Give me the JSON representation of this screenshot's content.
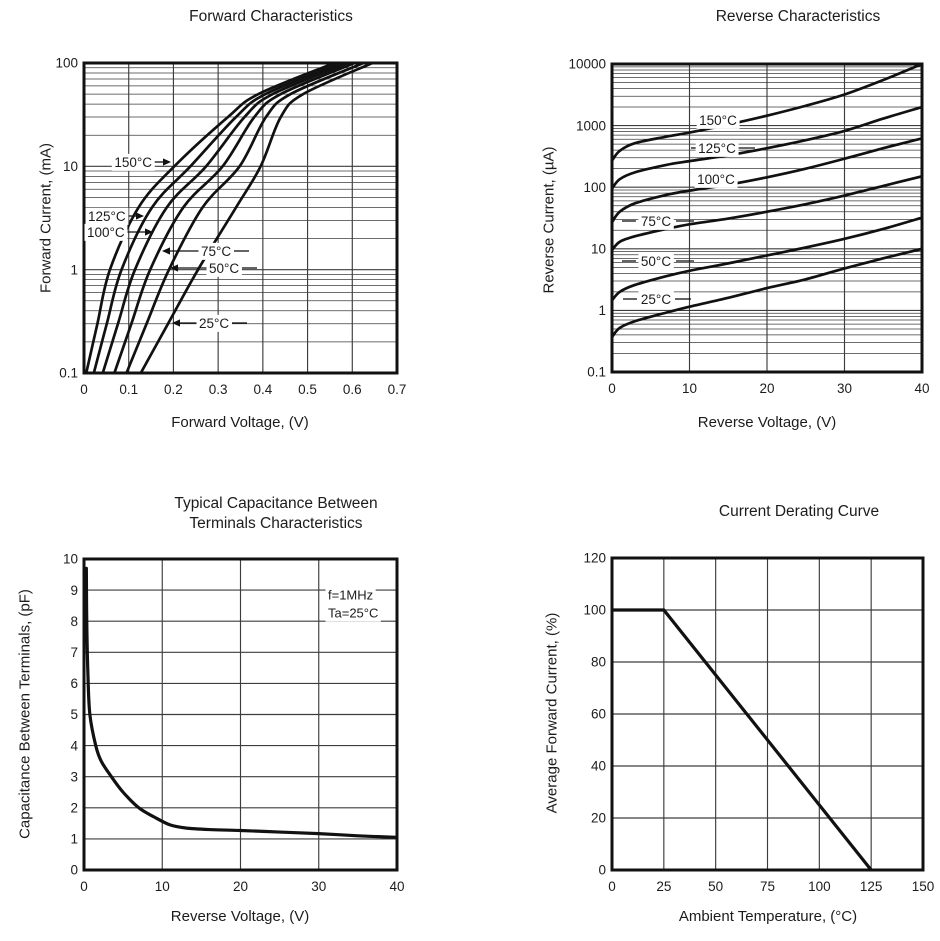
{
  "page": {
    "background": "#ffffff",
    "text_color": "#1c1c1c",
    "grid_color": "#3d3d3d",
    "frame_color": "#111111",
    "curve_color": "#111111"
  },
  "chart_data": [
    {
      "id": "forward-characteristics",
      "type": "line",
      "title": "Forward Characteristics",
      "xlabel": "Forward Voltage, (V)",
      "ylabel": "Forward Current, (mA)",
      "x_scale": "linear",
      "y_scale": "log",
      "xlim": [
        0,
        0.7
      ],
      "ylim": [
        0.1,
        100
      ],
      "x_ticks": [
        0,
        0.1,
        0.2,
        0.3,
        0.4,
        0.5,
        0.6,
        0.7
      ],
      "y_ticks": [
        100,
        10,
        1,
        0.1
      ],
      "grid": "on",
      "series": [
        {
          "name": "150°C",
          "points": [
            [
              0.005,
              0.1
            ],
            [
              0.03,
              0.3
            ],
            [
              0.058,
              1
            ],
            [
              0.122,
              4
            ],
            [
              0.202,
              10
            ],
            [
              0.322,
              30
            ],
            [
              0.39,
              50
            ],
            [
              0.56,
              100
            ]
          ]
        },
        {
          "name": "125°C",
          "points": [
            [
              0.022,
              0.1
            ],
            [
              0.051,
              0.3
            ],
            [
              0.084,
              1
            ],
            [
              0.152,
              4
            ],
            [
              0.238,
              10
            ],
            [
              0.34,
              30
            ],
            [
              0.406,
              50
            ],
            [
              0.575,
              100
            ]
          ]
        },
        {
          "name": "100°C",
          "points": [
            [
              0.042,
              0.1
            ],
            [
              0.076,
              0.3
            ],
            [
              0.114,
              1
            ],
            [
              0.185,
              4
            ],
            [
              0.273,
              10
            ],
            [
              0.359,
              30
            ],
            [
              0.422,
              50
            ],
            [
              0.59,
              100
            ]
          ]
        },
        {
          "name": "75°C",
          "points": [
            [
              0.068,
              0.1
            ],
            [
              0.106,
              0.3
            ],
            [
              0.148,
              1
            ],
            [
              0.222,
              4
            ],
            [
              0.31,
              10
            ],
            [
              0.381,
              30
            ],
            [
              0.44,
              50
            ],
            [
              0.605,
              100
            ]
          ]
        },
        {
          "name": "50°C",
          "points": [
            [
              0.095,
              0.1
            ],
            [
              0.14,
              0.3
            ],
            [
              0.19,
              1
            ],
            [
              0.265,
              4
            ],
            [
              0.348,
              10
            ],
            [
              0.407,
              30
            ],
            [
              0.462,
              50
            ],
            [
              0.625,
              100
            ]
          ]
        },
        {
          "name": "25°C",
          "points": [
            [
              0.127,
              0.1
            ],
            [
              0.188,
              0.3
            ],
            [
              0.255,
              1
            ],
            [
              0.34,
              4
            ],
            [
              0.395,
              10
            ],
            [
              0.44,
              30
            ],
            [
              0.49,
              50
            ],
            [
              0.645,
              100
            ]
          ]
        }
      ]
    },
    {
      "id": "reverse-characteristics",
      "type": "line",
      "title": "Reverse Characteristics",
      "xlabel": "Reverse Voltage, (V)",
      "ylabel": "Reverse Current, (µA)",
      "x_scale": "linear",
      "y_scale": "log",
      "xlim": [
        0,
        40
      ],
      "ylim": [
        0.1,
        10000
      ],
      "x_ticks": [
        0,
        10,
        20,
        30,
        40
      ],
      "y_ticks": [
        10000,
        1000,
        100,
        10,
        1,
        0.1
      ],
      "grid": "on",
      "series": [
        {
          "name": "150°C",
          "points": [
            [
              0,
              270
            ],
            [
              1,
              390
            ],
            [
              3,
              520
            ],
            [
              7,
              660
            ],
            [
              10,
              770
            ],
            [
              15,
              1040
            ],
            [
              20,
              1450
            ],
            [
              25,
              2100
            ],
            [
              30,
              3200
            ],
            [
              35,
              5500
            ],
            [
              40,
              10000
            ]
          ]
        },
        {
          "name": "125°C",
          "points": [
            [
              0,
              95
            ],
            [
              1,
              135
            ],
            [
              3,
              175
            ],
            [
              7,
              230
            ],
            [
              10,
              265
            ],
            [
              15,
              330
            ],
            [
              20,
              430
            ],
            [
              25,
              580
            ],
            [
              30,
              820
            ],
            [
              35,
              1300
            ],
            [
              40,
              2000
            ]
          ]
        },
        {
          "name": "100°C",
          "points": [
            [
              0,
              27
            ],
            [
              1,
              40
            ],
            [
              3,
              55
            ],
            [
              7,
              75
            ],
            [
              10,
              88
            ],
            [
              15,
              110
            ],
            [
              20,
              145
            ],
            [
              25,
              200
            ],
            [
              30,
              290
            ],
            [
              35,
              430
            ],
            [
              40,
              620
            ]
          ]
        },
        {
          "name": "75°C",
          "points": [
            [
              0,
              9.5
            ],
            [
              1,
              13
            ],
            [
              3,
              16
            ],
            [
              7,
              21
            ],
            [
              10,
              25
            ],
            [
              15,
              31
            ],
            [
              20,
              40
            ],
            [
              25,
              53
            ],
            [
              30,
              73
            ],
            [
              35,
              105
            ],
            [
              40,
              150
            ]
          ]
        },
        {
          "name": "50°C",
          "points": [
            [
              0,
              1.45
            ],
            [
              1,
              2.0
            ],
            [
              3,
              2.6
            ],
            [
              7,
              3.6
            ],
            [
              10,
              4.4
            ],
            [
              15,
              5.8
            ],
            [
              20,
              7.8
            ],
            [
              25,
              10.5
            ],
            [
              30,
              14.5
            ],
            [
              35,
              21
            ],
            [
              40,
              32
            ]
          ]
        },
        {
          "name": "25°C",
          "points": [
            [
              0,
              0.37
            ],
            [
              1,
              0.52
            ],
            [
              3,
              0.67
            ],
            [
              7,
              0.92
            ],
            [
              10,
              1.15
            ],
            [
              15,
              1.6
            ],
            [
              20,
              2.3
            ],
            [
              25,
              3.2
            ],
            [
              30,
              4.8
            ],
            [
              35,
              7
            ],
            [
              40,
              10
            ]
          ]
        }
      ]
    },
    {
      "id": "capacitance-between-terminals",
      "type": "line",
      "title": "Typical Capacitance Between Terminals Characteristics",
      "xlabel": "Reverse Voltage, (V)",
      "ylabel": "Capacitance Between Terminals, (pF)",
      "x_scale": "linear",
      "y_scale": "linear",
      "xlim": [
        0,
        40
      ],
      "ylim": [
        0,
        10
      ],
      "x_ticks": [
        0,
        10,
        20,
        30,
        40
      ],
      "y_ticks": [
        0,
        1,
        2,
        3,
        4,
        5,
        6,
        7,
        8,
        9,
        10
      ],
      "grid": "on",
      "annotations": [
        "f=1MHz",
        "Ta=25°C"
      ],
      "series": [
        {
          "name": "capacitance",
          "points": [
            [
              0.3,
              9.7
            ],
            [
              0.35,
              8
            ],
            [
              0.5,
              6.3
            ],
            [
              0.75,
              5
            ],
            [
              1.5,
              4
            ],
            [
              2.2,
              3.5
            ],
            [
              3.5,
              3
            ],
            [
              5,
              2.5
            ],
            [
              7,
              2
            ],
            [
              9,
              1.7
            ],
            [
              11,
              1.45
            ],
            [
              13,
              1.35
            ],
            [
              16,
              1.3
            ],
            [
              20,
              1.27
            ],
            [
              25,
              1.22
            ],
            [
              30,
              1.17
            ],
            [
              35,
              1.1
            ],
            [
              40,
              1.05
            ]
          ]
        }
      ]
    },
    {
      "id": "current-derating-curve",
      "type": "line",
      "title": "Current Derating Curve",
      "xlabel": "Ambient Temperature, (°C)",
      "ylabel": "Average Forward Current, (%)",
      "x_scale": "linear",
      "y_scale": "linear",
      "xlim": [
        0,
        150
      ],
      "ylim": [
        0,
        120
      ],
      "x_ticks": [
        0,
        25,
        50,
        75,
        100,
        125,
        150
      ],
      "y_ticks": [
        0,
        20,
        40,
        60,
        80,
        100,
        120
      ],
      "grid": "on",
      "series": [
        {
          "name": "derating",
          "smooth": false,
          "points": [
            [
              0,
              100
            ],
            [
              25,
              100
            ],
            [
              125,
              0
            ]
          ]
        }
      ]
    }
  ]
}
